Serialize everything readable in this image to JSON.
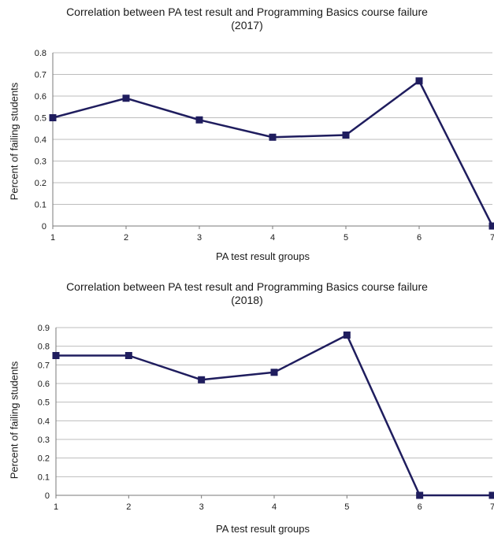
{
  "chart_data": [
    {
      "type": "line",
      "title": "Correlation between PA test result and Programming Basics course failure",
      "subtitle": "(2017)",
      "xlabel": "PA test result groups",
      "ylabel": "Percent of failing students",
      "x": [
        1,
        2,
        3,
        4,
        5,
        6,
        7
      ],
      "x_tick_labels": [
        "1",
        "2",
        "3",
        "4",
        "5",
        "6",
        "7"
      ],
      "y_tick_labels": [
        "0",
        "0.1",
        "0.2",
        "0.3",
        "0.4",
        "0.5",
        "0.6",
        "0.7",
        "0.8"
      ],
      "series": [
        {
          "values": [
            0.5,
            0.59,
            0.49,
            0.41,
            0.42,
            0.67,
            0.0
          ]
        }
      ],
      "ylim": [
        0,
        0.8
      ],
      "ytick_step": 0.1,
      "grid": true,
      "legend": "none",
      "line_color": "#1f1d5e",
      "marker": "square"
    },
    {
      "type": "line",
      "title": "Correlation between PA test result and Programming Basics course failure",
      "subtitle": "(2018)",
      "xlabel": "PA test result groups",
      "ylabel": "Percent of failing students",
      "x": [
        1,
        2,
        3,
        4,
        5,
        6,
        7
      ],
      "x_tick_labels": [
        "1",
        "2",
        "3",
        "4",
        "5",
        "6",
        "7"
      ],
      "y_tick_labels": [
        "0",
        "0.1",
        "0.2",
        "0.3",
        "0.4",
        "0.5",
        "0.6",
        "0.7",
        "0.8",
        "0.9"
      ],
      "series": [
        {
          "values": [
            0.75,
            0.75,
            0.62,
            0.66,
            0.86,
            0.0,
            0.0
          ]
        }
      ],
      "ylim": [
        0,
        0.9
      ],
      "ytick_step": 0.1,
      "grid": true,
      "legend": "none",
      "line_color": "#1f1d5e",
      "marker": "square"
    }
  ]
}
